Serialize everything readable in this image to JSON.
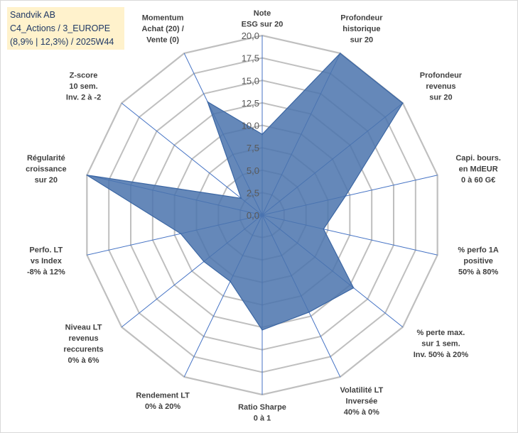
{
  "title": {
    "company": "Sandvik AB",
    "category": "C4_Actions / 3_EUROPE",
    "summary": "(8,9% | 12,3%) / 2025W44"
  },
  "chart_data": {
    "type": "radar",
    "scale": {
      "min": 0,
      "max": 20,
      "step": 2.5
    },
    "ticks": [
      "0,0",
      "2,5",
      "5,0",
      "7,5",
      "10,0",
      "12,5",
      "15,0",
      "17,5",
      "20,0"
    ],
    "colors": {
      "fill": "#4a73ad",
      "stroke": "#3b66a3",
      "grid": "#bfbfbf",
      "spoke": "#4472c4"
    },
    "axes": [
      {
        "label": [
          "Note",
          "ESG sur 20"
        ],
        "value": 9.0
      },
      {
        "label": [
          "Profondeur",
          "historique",
          "sur 20"
        ],
        "value": 20.0
      },
      {
        "label": [
          "Profondeur",
          "revenus",
          "sur 20"
        ],
        "value": 20.0
      },
      {
        "label": [
          "Capi. bours.",
          "en MdEUR",
          "0 à 60 G€"
        ],
        "value": 9.5
      },
      {
        "label": [
          "% perfo 1A",
          "positive",
          "50% à 80%"
        ],
        "value": 7.0
      },
      {
        "label": [
          "% perte max.",
          "sur 1 sem.",
          "Inv. 50% à 20%"
        ],
        "value": 13.0
      },
      {
        "label": [
          "Volatilité LT",
          "Inversée",
          "40% à 0%"
        ],
        "value": 12.0
      },
      {
        "label": [
          "Ratio Sharpe",
          "0 à 1"
        ],
        "value": 12.8
      },
      {
        "label": [
          "Rendement LT",
          "0% à 20%"
        ],
        "value": 8.2
      },
      {
        "label": [
          "Niveau LT",
          "revenus",
          "reccurents",
          "0% à 6%"
        ],
        "value": 8.3
      },
      {
        "label": [
          "Perfo. LT",
          "vs Index",
          "-8% à 12%"
        ],
        "value": 9.3
      },
      {
        "label": [
          "Régularité",
          "croissance",
          "sur 20"
        ],
        "value": 20.0
      },
      {
        "label": [
          "Z-score",
          "10 sem.",
          "Inv. 2 à -2"
        ],
        "value": 3.0
      },
      {
        "label": [
          "Momentum",
          "Achat (20) /",
          "Vente (0)"
        ],
        "value": 14.0
      }
    ]
  }
}
